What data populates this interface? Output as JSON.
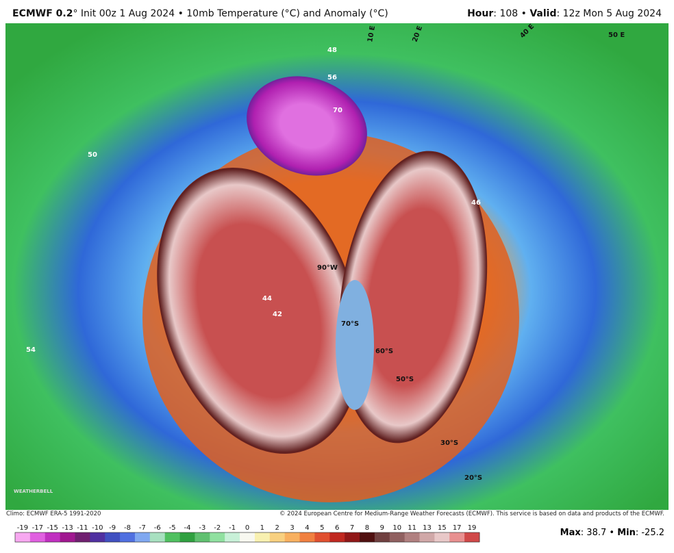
{
  "header": {
    "model": "ECMWF 0.2",
    "desc": "° Init 00z 1 Aug 2024 • 10mb Temperature (°C) and Anomaly (°C)",
    "hour_label": "Hour",
    "hour_value": ": 108 • ",
    "valid_label": "Valid",
    "valid_value": ": 12z Mon 5 Aug 2024"
  },
  "map": {
    "labels": [
      "90°W",
      "70°S",
      "60°S",
      "50°S",
      "30°S",
      "20°S",
      "10 E",
      "20 E",
      "40 E",
      "50 E",
      "48",
      "50",
      "46",
      "54",
      "56",
      "70",
      "44",
      "42"
    ],
    "watermark": "WEATHERBELL"
  },
  "footer": {
    "climo": "Climo: ECMWF ERA-5 1991-2020",
    "copyright": "© 2024 European Centre for Medium-Range Weather Forecasts (ECMWF). This service is based on data and products of the ECMWF."
  },
  "colorbar": {
    "ticks": [
      -19,
      -17,
      -15,
      -13,
      -11,
      -10,
      -9,
      -8,
      -7,
      -6,
      -5,
      -4,
      -3,
      -2,
      -1,
      0,
      1,
      2,
      3,
      4,
      5,
      6,
      7,
      8,
      9,
      10,
      11,
      13,
      15,
      17,
      19
    ],
    "colors": [
      "#f7a8f0",
      "#e060e0",
      "#c030c0",
      "#a01890",
      "#702070",
      "#5030a0",
      "#4050c0",
      "#5070e0",
      "#80a8f0",
      "#a8e0c0",
      "#50c060",
      "#30a040",
      "#60c070",
      "#90e0a0",
      "#c8f0d8",
      "#f8f8f0",
      "#f8f0b0",
      "#f8d080",
      "#f8b060",
      "#f08040",
      "#e05030",
      "#c02820",
      "#901818",
      "#501010",
      "#704040",
      "#906060",
      "#b08080",
      "#d0a8a8",
      "#e8c8c8",
      "#e89090",
      "#d04848"
    ]
  },
  "stats": {
    "max_label": "Max",
    "max_value": 38.7,
    "sep": " • ",
    "min_label": "Min",
    "min_value": -25.2,
    "colon": ": "
  }
}
